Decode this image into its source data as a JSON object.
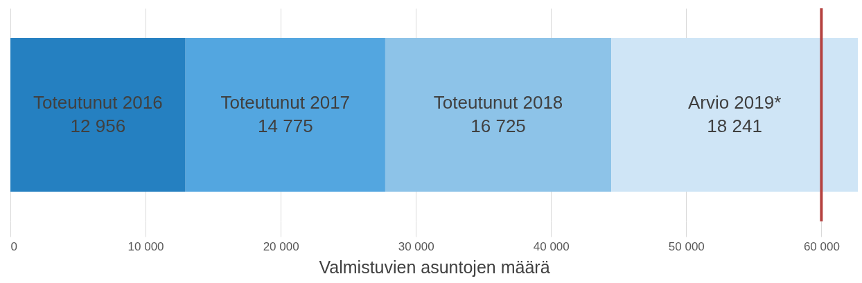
{
  "chart_data": {
    "type": "bar",
    "orientation": "horizontal",
    "stacked": true,
    "categories": [
      null
    ],
    "series": [
      {
        "name": "Toteutunut 2016",
        "color": "#2580c1",
        "values": [
          12956
        ],
        "value_labels": [
          "12 956"
        ]
      },
      {
        "name": "Toteutunut 2017",
        "color": "#53a6e0",
        "values": [
          14775
        ],
        "value_labels": [
          "14 775"
        ]
      },
      {
        "name": "Toteutunut 2018",
        "color": "#8dc3e8",
        "values": [
          16725
        ],
        "value_labels": [
          "16 725"
        ]
      },
      {
        "name": "Arvio 2019*",
        "color": "#cfe5f6",
        "values": [
          18241
        ],
        "value_labels": [
          "18 241"
        ]
      }
    ],
    "xlabel": "Valmistuvien asuntojen määrä",
    "xlim": [
      0,
      62697
    ],
    "xticks": [
      0,
      {
        "value": 10000,
        "label": "10 000"
      },
      {
        "value": 20000,
        "label": "20 000"
      },
      {
        "value": 30000,
        "label": "30 000"
      },
      {
        "value": 40000,
        "label": "40 000"
      },
      {
        "value": 50000,
        "label": "50 000"
      },
      {
        "value": 60000,
        "label": "60 000"
      }
    ],
    "grid": "x",
    "tick_labels": "x",
    "ref_lines": [
      {
        "axis": "x",
        "value": 60000,
        "color": "#b5413f"
      }
    ]
  }
}
